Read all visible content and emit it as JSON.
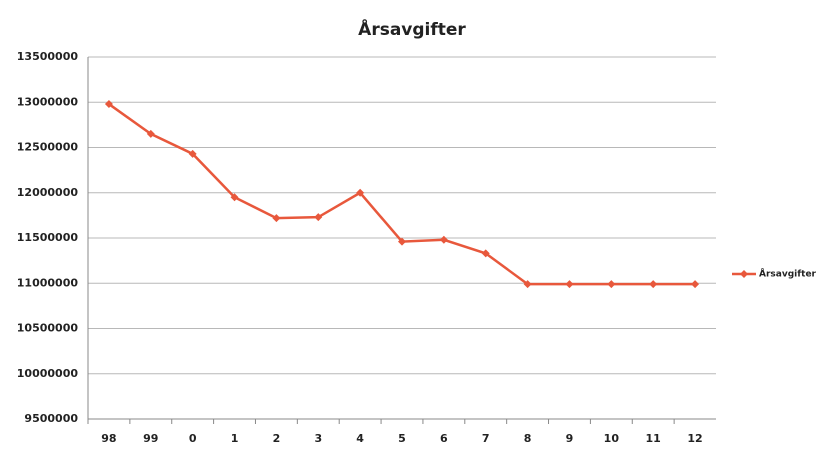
{
  "chart_data": {
    "type": "line",
    "title": "Årsavgifter",
    "categories": [
      "98",
      "99",
      "0",
      "1",
      "2",
      "3",
      "4",
      "5",
      "6",
      "7",
      "8",
      "9",
      "10",
      "11",
      "12"
    ],
    "series": [
      {
        "name": "Årsavgifter",
        "color": "#e8583c",
        "values": [
          12980000,
          12650000,
          12430000,
          11950000,
          11720000,
          11730000,
          12000000,
          11460000,
          11480000,
          11330000,
          10990000,
          10990000,
          10990000,
          10990000,
          10990000
        ]
      }
    ],
    "ylim": [
      9500000,
      13500000
    ],
    "yticks": [
      9500000,
      10000000,
      10500000,
      11000000,
      11500000,
      12000000,
      12500000,
      13000000,
      13500000
    ],
    "grid": true,
    "legend": "right"
  }
}
